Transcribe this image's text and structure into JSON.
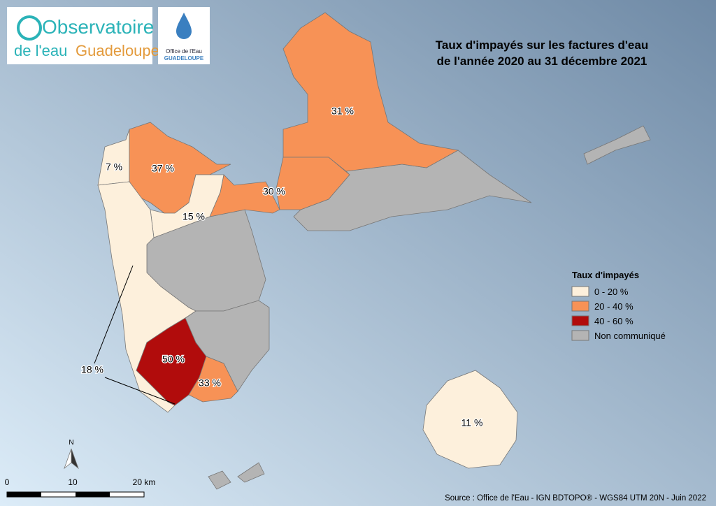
{
  "logos": {
    "observatoire": {
      "line1": "Observatoire",
      "line2a": "de l'eau",
      "line2b": "Guadeloupe"
    },
    "office": {
      "line1": "Office de l'Eau",
      "line2": "GUADELOUPE"
    }
  },
  "title": {
    "line1": "Taux d'impayés sur les factures d'eau",
    "line2": "de l'année 2020 au 31 décembre 2021"
  },
  "legend": {
    "title": "Taux d'impayés",
    "items": [
      {
        "label": "0 - 20 %",
        "color": "#fdf0dc"
      },
      {
        "label": "20 - 40 %",
        "color": "#f79256"
      },
      {
        "label": "40 - 60 %",
        "color": "#b10c0c"
      },
      {
        "label": "Non communiqué",
        "color": "#b4b4b4"
      }
    ]
  },
  "regions": [
    {
      "label": "31 %",
      "color": "#f79256"
    },
    {
      "label": "30 %",
      "color": "#f79256"
    },
    {
      "label": "7 %",
      "color": "#fdf0dc"
    },
    {
      "label": "37 %",
      "color": "#f79256"
    },
    {
      "label": "15 %",
      "color": "#fdf0dc"
    },
    {
      "label": "18 %",
      "color": "#fdf0dc"
    },
    {
      "label": "50 %",
      "color": "#b10c0c"
    },
    {
      "label": "33 %",
      "color": "#f79256"
    },
    {
      "label": "11 %",
      "color": "#fdf0dc"
    }
  ],
  "map": {
    "north": "N",
    "scale": [
      "0",
      "10",
      "20 km"
    ]
  },
  "source": "Source : Office de l'Eau - IGN BDTOPO® - WGS84 UTM 20N - Juin 2022"
}
